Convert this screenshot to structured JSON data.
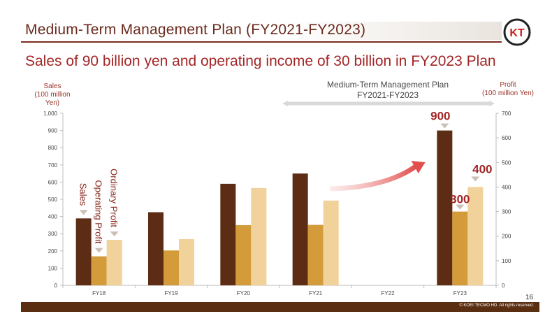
{
  "header": {
    "title": "Medium-Term Management Plan (FY2021-FY2023)"
  },
  "headline": "Sales of 90 billion yen and operating income of 30 billion in FY2023 Plan",
  "logo": {
    "text": "KT"
  },
  "left_axis": {
    "label_line1": "Sales",
    "label_line2": "(100 million Yen)"
  },
  "right_axis": {
    "label_line1": "Profit",
    "label_line2": "(100 million Yen)"
  },
  "plan_period": {
    "line1": "Medium-Term Management Plan",
    "line2": "FY2021-FY2023"
  },
  "page_number": "16",
  "copyright": "© KOEI TECMO HD. All rights reserved.",
  "colors": {
    "sales": "#5c2d14",
    "operating_profit": "#d39b3a",
    "ordinary_profit": "#f1d29a",
    "accent": "#a32627"
  },
  "chart_data": {
    "type": "bar",
    "categories": [
      "FY18",
      "FY19",
      "FY20",
      "FY21",
      "FY22",
      "FY23"
    ],
    "series": [
      {
        "name": "Sales",
        "axis": "left",
        "values": [
          389,
          425,
          590,
          650,
          null,
          900
        ]
      },
      {
        "name": "Operating Profit",
        "axis": "right",
        "values": [
          118,
          142,
          245,
          246,
          null,
          300
        ]
      },
      {
        "name": "Ordinary Profit",
        "axis": "right",
        "values": [
          185,
          188,
          396,
          345,
          null,
          400
        ]
      }
    ],
    "y_left": {
      "min": 0,
      "max": 1000,
      "ticks": [
        0,
        100,
        200,
        300,
        400,
        500,
        600,
        700,
        800,
        900,
        "1,000"
      ]
    },
    "y_right": {
      "min": 0,
      "max": 700,
      "ticks": [
        0,
        100,
        200,
        300,
        400,
        500,
        600,
        700
      ]
    },
    "annotations": [
      {
        "text": "900",
        "series": "Sales",
        "category": "FY23"
      },
      {
        "text": "300",
        "series": "Operating Profit",
        "category": "FY23"
      },
      {
        "text": "400",
        "series": "Ordinary Profit",
        "category": "FY23"
      }
    ],
    "grid": false
  }
}
